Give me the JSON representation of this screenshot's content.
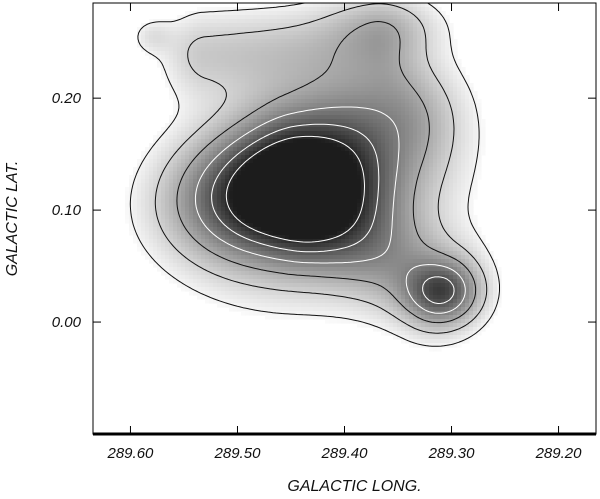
{
  "chart_data": {
    "type": "heatmap",
    "subtype": "contour-map",
    "xlabel": "GALACTIC LONG.",
    "ylabel": "GALACTIC LAT.",
    "xlim": [
      289.635,
      289.165
    ],
    "ylim": [
      -0.1,
      0.285
    ],
    "x_reversed": true,
    "x_ticks": [
      289.6,
      289.5,
      289.4,
      289.3,
      289.2
    ],
    "x_tick_labels": [
      "289.60",
      "289.50",
      "289.40",
      "289.30",
      "289.20"
    ],
    "y_ticks": [
      0.0,
      0.1,
      0.2
    ],
    "y_tick_labels": [
      "0.00",
      "0.10",
      "0.20"
    ],
    "colormap": "inverted grayscale (higher intensity = darker)",
    "contour_levels": [
      1,
      2,
      3,
      4,
      5,
      6
    ],
    "peaks": [
      {
        "name": "main",
        "x": 289.462,
        "y": 0.115,
        "amplitude": 1.0
      },
      {
        "name": "secondary",
        "x": 289.31,
        "y": 0.027,
        "amplitude": 0.52
      },
      {
        "name": "minor",
        "x": 289.58,
        "y": 0.255,
        "amplitude": 0.12
      }
    ],
    "grid": false
  }
}
